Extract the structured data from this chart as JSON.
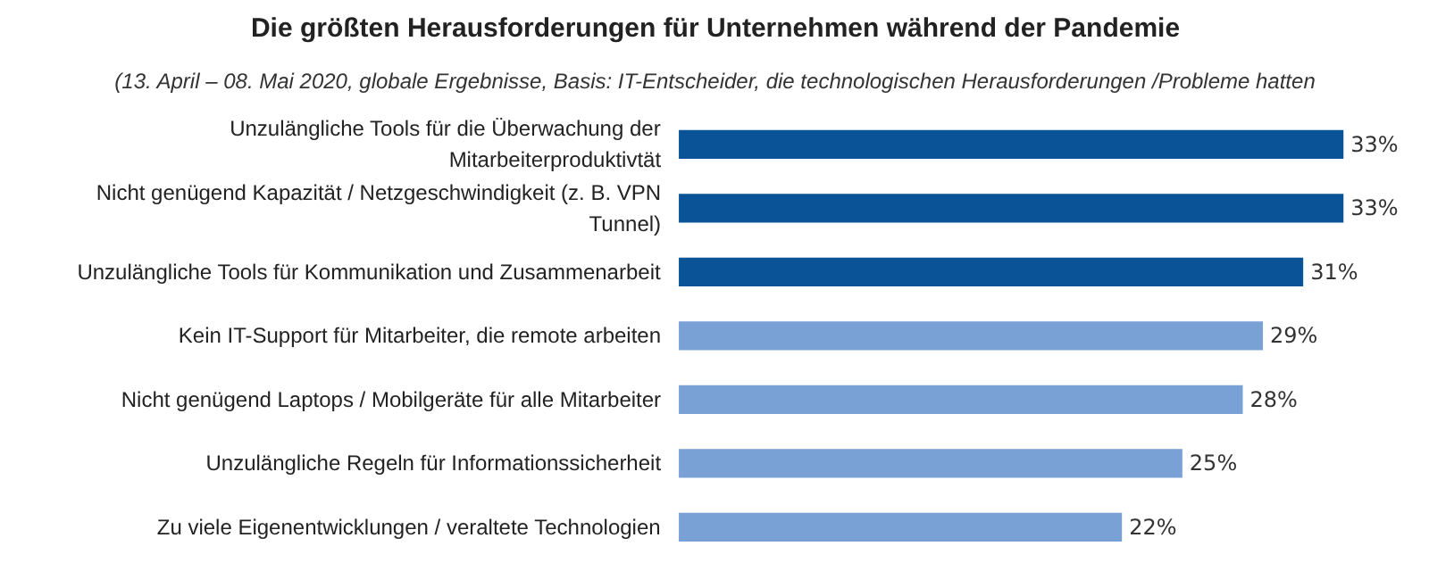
{
  "chart_data": {
    "type": "bar",
    "orientation": "horizontal",
    "title": "Die größten Herausforderungen für Unternehmen während der Pandemie",
    "subtitle": "(13. April – 08. Mai 2020, globale Ergebnisse, Basis: IT-Entscheider, die technologischen Herausforderungen /Probleme hatten",
    "categories": [
      "Unzulängliche Tools für die Überwachung der\nMitarbeiterproduktivtät",
      "Nicht genügend Kapazität / Netzgeschwindigkeit (z. B. VPN\nTunnel)",
      "Unzulängliche Tools für Kommunikation und Zusammenarbeit",
      "Kein IT-Support für Mitarbeiter, die remote arbeiten",
      "Nicht genügend Laptops / Mobilgeräte für alle Mitarbeiter",
      "Unzulängliche Regeln für Informationssicherheit",
      "Zu viele Eigenentwicklungen / veraltete Technologien"
    ],
    "values": [
      33,
      33,
      31,
      29,
      28,
      25,
      22
    ],
    "value_labels": [
      "33%",
      "33%",
      "31%",
      "29%",
      "28%",
      "25%",
      "22%"
    ],
    "colors": [
      "#0a5396",
      "#0a5396",
      "#0a5396",
      "#79a1d5",
      "#79a1d5",
      "#79a1d5",
      "#79a1d5"
    ],
    "grid": false
  }
}
